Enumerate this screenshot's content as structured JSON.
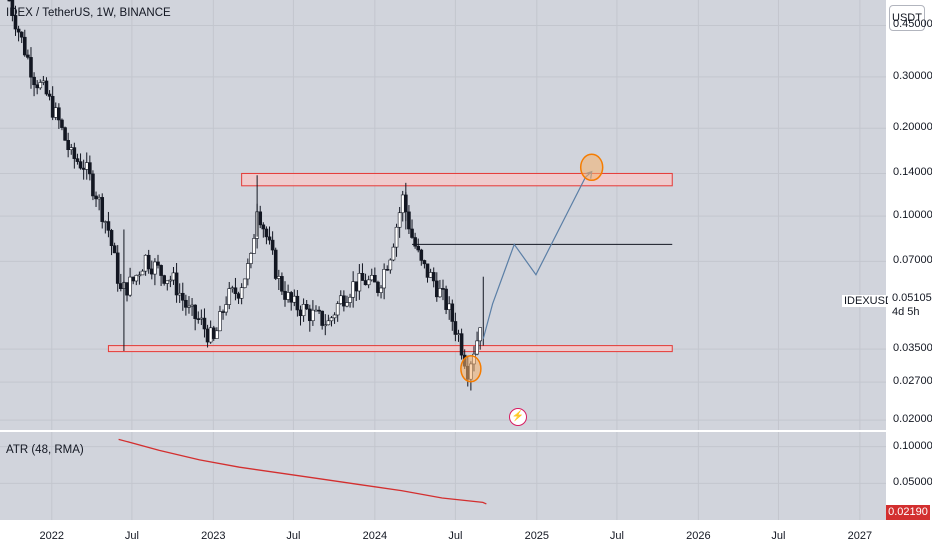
{
  "header": {
    "title": "IDEX / TetherUS, 1W, BINANCE"
  },
  "indicator": {
    "title": "ATR (48, RMA)"
  },
  "price_axis": {
    "unit": "USDT",
    "ticks": [
      "0.45000",
      "0.30000",
      "0.20000",
      "0.14000",
      "0.10000",
      "0.07000",
      "0.03500",
      "0.02700",
      "0.02000"
    ]
  },
  "atr_axis": {
    "ticks": [
      "0.10000",
      "0.05000"
    ]
  },
  "time_axis": {
    "ticks": [
      "2022",
      "Jul",
      "2023",
      "Jul",
      "2024",
      "Jul",
      "2025",
      "Jul",
      "2026",
      "Jul",
      "2027"
    ]
  },
  "last_price": {
    "symbol": "IDEXUSDT",
    "value": "0.05105",
    "countdown": "4d 5h"
  },
  "atr_last": {
    "value": "0.02190"
  },
  "colors": {
    "up": "#26a69a",
    "down": "#ef5350",
    "candle": "#131722",
    "zone_fill": "#f8c8c8",
    "zone_stroke": "#e53935",
    "projection": "#5b7fa6",
    "atr_line": "#d32f2f",
    "circle": "#f57c00"
  },
  "chart_data": {
    "type": "line",
    "title": "IDEX / TetherUS, 1W, BINANCE",
    "yscale": "log",
    "ylim": [
      0.0185,
      0.55
    ],
    "x_range": [
      "2021-09-06",
      "2027-03-01"
    ],
    "price_series": {
      "name": "IDEXUSDT",
      "points": [
        [
          "2021-09-27",
          0.55
        ],
        [
          "2021-10-25",
          0.4
        ],
        [
          "2021-11-22",
          0.3
        ],
        [
          "2021-12-20",
          0.26
        ],
        [
          "2022-01-17",
          0.21
        ],
        [
          "2022-02-14",
          0.16
        ],
        [
          "2022-03-14",
          0.15
        ],
        [
          "2022-04-11",
          0.12
        ],
        [
          "2022-05-09",
          0.09
        ],
        [
          "2022-06-06",
          0.055
        ],
        [
          "2022-07-04",
          0.06
        ],
        [
          "2022-08-01",
          0.072
        ],
        [
          "2022-09-05",
          0.064
        ],
        [
          "2022-10-03",
          0.06
        ],
        [
          "2022-11-07",
          0.047
        ],
        [
          "2022-12-05",
          0.043
        ],
        [
          "2023-01-02",
          0.037
        ],
        [
          "2023-01-30",
          0.052
        ],
        [
          "2023-02-27",
          0.056
        ],
        [
          "2023-03-27",
          0.07
        ],
        [
          "2023-04-10",
          0.11
        ],
        [
          "2023-05-01",
          0.085
        ],
        [
          "2023-05-29",
          0.06
        ],
        [
          "2023-06-26",
          0.05
        ],
        [
          "2023-07-24",
          0.048
        ],
        [
          "2023-08-21",
          0.045
        ],
        [
          "2023-09-18",
          0.043
        ],
        [
          "2023-10-16",
          0.052
        ],
        [
          "2023-11-13",
          0.058
        ],
        [
          "2023-12-11",
          0.06
        ],
        [
          "2024-01-08",
          0.057
        ],
        [
          "2024-02-05",
          0.075
        ],
        [
          "2024-03-04",
          0.115
        ],
        [
          "2024-03-25",
          0.085
        ],
        [
          "2024-04-15",
          0.068
        ],
        [
          "2024-05-13",
          0.06
        ],
        [
          "2024-06-10",
          0.05
        ],
        [
          "2024-07-08",
          0.039
        ],
        [
          "2024-07-29",
          0.03
        ],
        [
          "2024-08-19",
          0.038
        ],
        [
          "2024-09-02",
          0.05105
        ]
      ]
    },
    "atr_series": {
      "name": "ATR (48, RMA)",
      "ylim": [
        0.0,
        0.12
      ],
      "points": [
        [
          "2022-06-01",
          0.11
        ],
        [
          "2022-09-01",
          0.095
        ],
        [
          "2022-12-01",
          0.082
        ],
        [
          "2023-03-01",
          0.072
        ],
        [
          "2023-06-01",
          0.064
        ],
        [
          "2023-09-01",
          0.056
        ],
        [
          "2023-12-01",
          0.048
        ],
        [
          "2024-03-01",
          0.04
        ],
        [
          "2024-06-01",
          0.03
        ],
        [
          "2024-09-01",
          0.024
        ],
        [
          "2024-09-09",
          0.0219
        ]
      ]
    },
    "drawings": {
      "support_zone": {
        "x": [
          "2022-05-09",
          "2025-11-03"
        ],
        "y": [
          0.0345,
          0.036
        ]
      },
      "resistance_zone": {
        "x": [
          "2023-03-06",
          "2025-11-03"
        ],
        "y": [
          0.127,
          0.14
        ]
      },
      "target_line": {
        "x": [
          "2024-03-25",
          "2025-11-03"
        ],
        "y": 0.08
      },
      "projection": {
        "points": [
          [
            "2024-09-02",
            0.038
          ],
          [
            "2024-09-23",
            0.05
          ],
          [
            "2024-11-11",
            0.08
          ],
          [
            "2024-12-30",
            0.063
          ],
          [
            "2025-04-21",
            0.136
          ],
          [
            "2025-05-05",
            0.142
          ]
        ]
      },
      "low_marker": {
        "x": "2024-08-05",
        "y": 0.03
      },
      "target_marker": {
        "x": "2025-05-05",
        "y": 0.147
      }
    }
  }
}
